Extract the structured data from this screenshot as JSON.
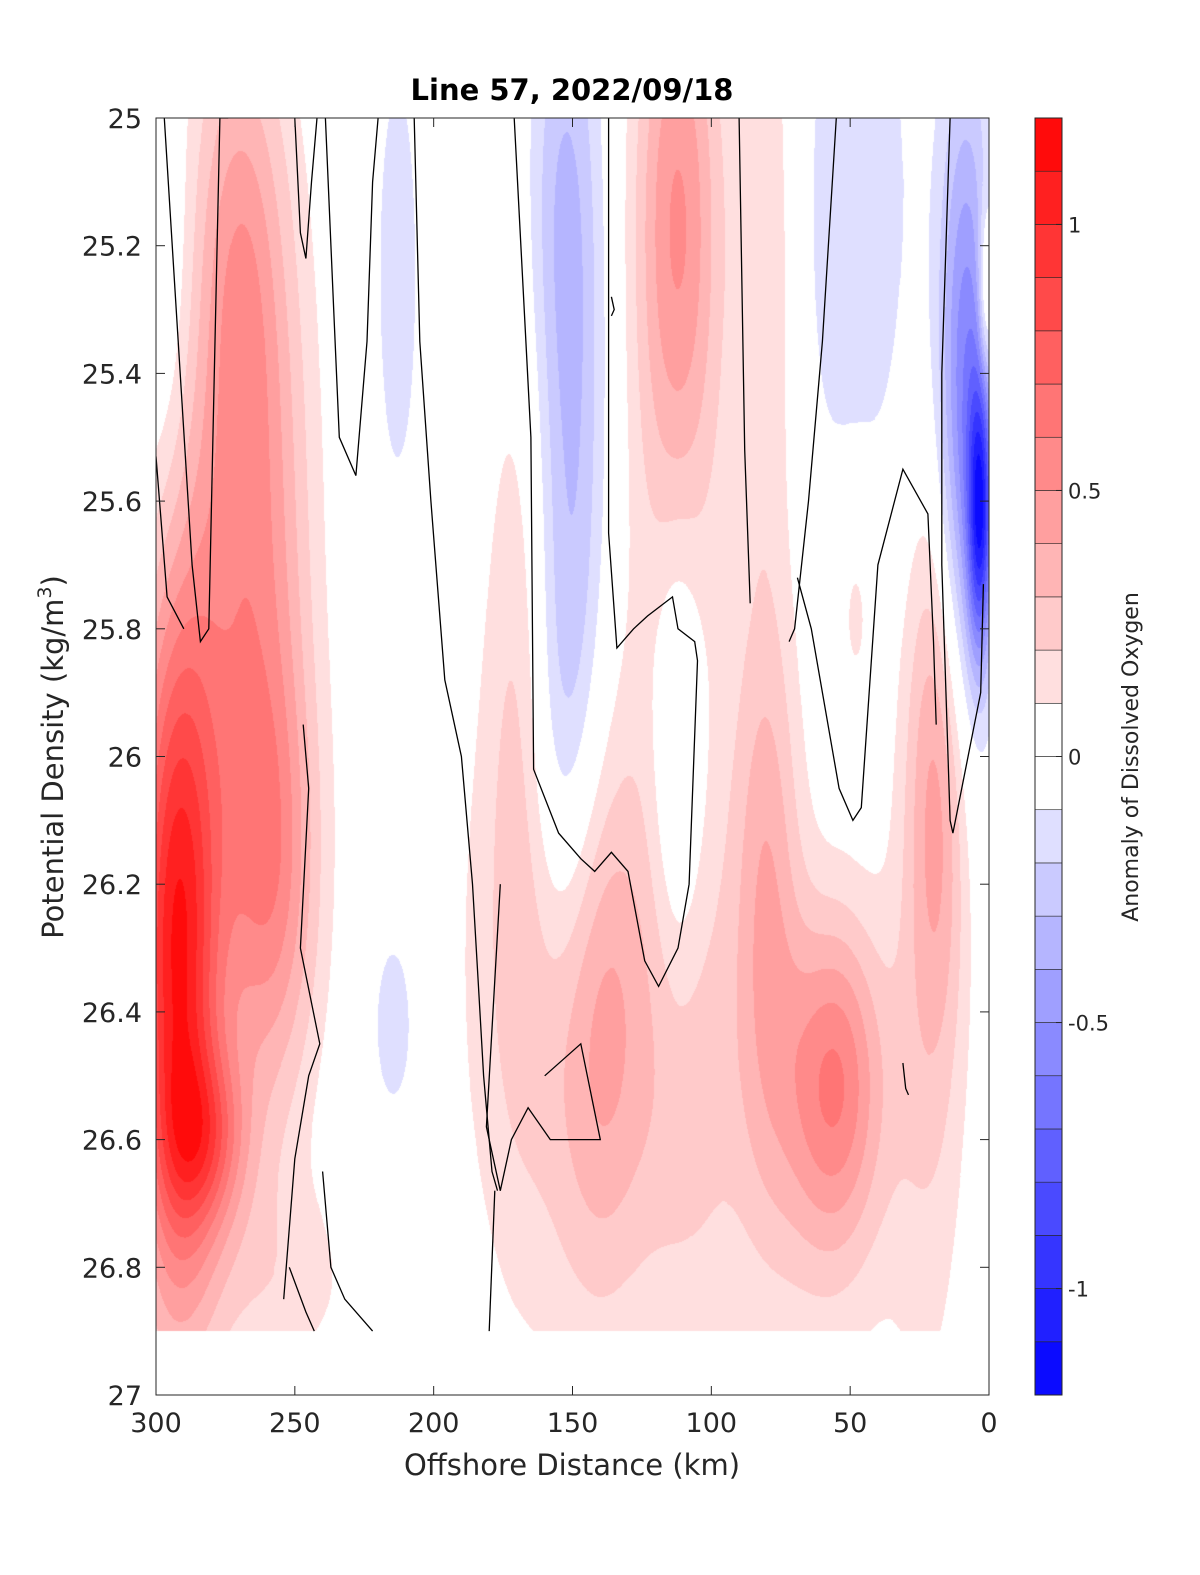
{
  "chart_data": {
    "type": "heatmap",
    "title": "Line 57, 2022/09/18",
    "xlabel": "Offshore Distance (km)",
    "ylabel": "Potential Density (kg/m",
    "ylabel_superscript": "3",
    "ylabel_suffix": ")",
    "colorbar_label": "Anomaly of Dissolved Oxygen",
    "xlim": [
      300,
      0
    ],
    "ylim": [
      25,
      27
    ],
    "y_reversed": true,
    "x_ticks": [
      300,
      250,
      200,
      150,
      100,
      50,
      0
    ],
    "x_tick_labels": [
      "300",
      "250",
      "200",
      "150",
      "100",
      "50",
      "0"
    ],
    "y_ticks": [
      25,
      25.2,
      25.4,
      25.6,
      25.8,
      26,
      26.2,
      26.4,
      26.6,
      26.8,
      27
    ],
    "y_tick_labels": [
      "25",
      "25.2",
      "25.4",
      "25.6",
      "25.8",
      "26",
      "26.2",
      "26.4",
      "26.6",
      "26.8",
      "27"
    ],
    "colorbar_range": [
      -1.2,
      1.2
    ],
    "colorbar_ticks": [
      1,
      0.5,
      0,
      -0.5,
      -1
    ],
    "colorbar_tick_labels": [
      "1",
      "0.5",
      "0",
      "-0.5",
      "-1"
    ],
    "colorbar_levels": 24,
    "colors": {
      "positive": "#ff0000",
      "negative": "#0000ff",
      "zero": "#ffffff",
      "contour": "#000000"
    },
    "data_extent": {
      "sigma_max": 26.9
    },
    "anomaly_features": [
      {
        "x": 293,
        "y": 26.32,
        "value": 1.0,
        "sx": 11,
        "sy": 0.38
      },
      {
        "x": 282,
        "y": 26.6,
        "value": 0.45,
        "sx": 11,
        "sy": 0.1
      },
      {
        "x": 262,
        "y": 25.65,
        "value": 0.4,
        "sx": 13,
        "sy": 0.45
      },
      {
        "x": 258,
        "y": 26.2,
        "value": 0.4,
        "sx": 12,
        "sy": 0.25
      },
      {
        "x": 270,
        "y": 25.2,
        "value": 0.2,
        "sx": 10,
        "sy": 0.25
      },
      {
        "x": 282,
        "y": 25.7,
        "value": 0.25,
        "sx": 14,
        "sy": 0.6
      },
      {
        "x": 296,
        "y": 25.3,
        "value": -0.15,
        "sx": 8,
        "sy": 0.28
      },
      {
        "x": 213,
        "y": 25.25,
        "value": -0.15,
        "sx": 7,
        "sy": 0.32
      },
      {
        "x": 214,
        "y": 26.42,
        "value": -0.15,
        "sx": 8,
        "sy": 0.15
      },
      {
        "x": 150,
        "y": 25.55,
        "value": -0.3,
        "sx": 9,
        "sy": 0.5
      },
      {
        "x": 155,
        "y": 25.1,
        "value": -0.15,
        "sx": 9,
        "sy": 0.25
      },
      {
        "x": 155,
        "y": 26.02,
        "value": -0.15,
        "sx": 9,
        "sy": 0.25
      },
      {
        "x": 112,
        "y": 26.0,
        "value": -0.3,
        "sx": 7,
        "sy": 0.28
      },
      {
        "x": 112,
        "y": 25.12,
        "value": 0.4,
        "sx": 11,
        "sy": 0.32
      },
      {
        "x": 112,
        "y": 25.65,
        "value": 0.2,
        "sx": 12,
        "sy": 0.5
      },
      {
        "x": 80,
        "y": 25.2,
        "value": 0.2,
        "sx": 8,
        "sy": 0.4
      },
      {
        "x": 80,
        "y": 26.2,
        "value": 0.35,
        "sx": 9,
        "sy": 0.32
      },
      {
        "x": 55,
        "y": 26.5,
        "value": 0.45,
        "sx": 12,
        "sy": 0.18
      },
      {
        "x": 62,
        "y": 26.62,
        "value": 0.2,
        "sx": 20,
        "sy": 0.25
      },
      {
        "x": 140,
        "y": 26.45,
        "value": 0.3,
        "sx": 13,
        "sy": 0.3
      },
      {
        "x": 158,
        "y": 26.35,
        "value": 0.2,
        "sx": 25,
        "sy": 0.4
      },
      {
        "x": 170,
        "y": 25.9,
        "value": 0.15,
        "sx": 8,
        "sy": 0.45
      },
      {
        "x": 108,
        "y": 26.52,
        "value": 0.2,
        "sx": 14,
        "sy": 0.32
      },
      {
        "x": 18,
        "y": 26.05,
        "value": 0.35,
        "sx": 8,
        "sy": 0.3
      },
      {
        "x": 22,
        "y": 26.42,
        "value": 0.15,
        "sx": 10,
        "sy": 0.5
      },
      {
        "x": 48,
        "y": 25.75,
        "value": 0.15,
        "sx": 6,
        "sy": 0.15
      },
      {
        "x": 48,
        "y": 25.15,
        "value": -0.2,
        "sx": 15,
        "sy": 0.35
      },
      {
        "x": 8,
        "y": 25.45,
        "value": -0.6,
        "sx": 7,
        "sy": 0.35
      },
      {
        "x": 3,
        "y": 25.62,
        "value": -0.8,
        "sx": 3,
        "sy": 0.15
      },
      {
        "x": 1,
        "y": 25.28,
        "value": 0.35,
        "sx": 2,
        "sy": 0.1
      },
      {
        "x": 258,
        "y": 26.82,
        "value": 0.15,
        "sx": 22,
        "sy": 0.12
      }
    ],
    "zero_contours": [
      [
        [
          297,
          25
        ],
        [
          287,
          25.7
        ],
        [
          284,
          25.82
        ],
        [
          281,
          25.8
        ],
        [
          279,
          25.4
        ],
        [
          277,
          25
        ],
        [
          274,
          25
        ]
      ],
      [
        [
          300,
          25.53
        ],
        [
          296,
          25.75
        ],
        [
          290,
          25.8
        ]
      ],
      [
        [
          250,
          25
        ],
        [
          248,
          25.18
        ],
        [
          246,
          25.22
        ],
        [
          244,
          25.1
        ],
        [
          242,
          25
        ]
      ],
      [
        [
          239,
          25
        ],
        [
          236,
          25.3
        ],
        [
          234,
          25.5
        ],
        [
          228,
          25.56
        ],
        [
          224,
          25.35
        ],
        [
          222,
          25.1
        ],
        [
          220,
          25
        ]
      ],
      [
        [
          207,
          25
        ],
        [
          205,
          25.35
        ],
        [
          201,
          25.6
        ],
        [
          196,
          25.88
        ],
        [
          190,
          26
        ],
        [
          186,
          26.2
        ],
        [
          184,
          26.35
        ],
        [
          182,
          26.5
        ],
        [
          179,
          26.65
        ],
        [
          177,
          26.68
        ]
      ],
      [
        [
          171,
          25
        ],
        [
          165,
          25.5
        ],
        [
          164,
          26.02
        ],
        [
          155,
          26.12
        ],
        [
          147,
          26.16
        ],
        [
          142,
          26.18
        ],
        [
          136,
          26.15
        ],
        [
          130,
          26.18
        ],
        [
          124,
          26.32
        ],
        [
          119,
          26.36
        ],
        [
          112,
          26.3
        ],
        [
          108,
          26.2
        ],
        [
          105,
          25.85
        ],
        [
          106,
          25.82
        ],
        [
          112,
          25.8
        ],
        [
          114,
          25.75
        ],
        [
          123,
          25.78
        ],
        [
          128,
          25.8
        ],
        [
          134,
          25.83
        ],
        [
          137,
          25.65
        ],
        [
          137,
          25
        ]
      ],
      [
        [
          136,
          25.28
        ],
        [
          135,
          25.3
        ],
        [
          136,
          25.31
        ]
      ],
      [
        [
          240,
          26.65
        ],
        [
          237,
          26.8
        ],
        [
          232,
          26.85
        ],
        [
          222,
          26.9
        ]
      ],
      [
        [
          180,
          26.9
        ],
        [
          178,
          26.68
        ]
      ],
      [
        [
          160,
          26.5
        ],
        [
          147,
          26.45
        ],
        [
          140,
          26.6
        ],
        [
          158,
          26.6
        ],
        [
          166,
          26.55
        ],
        [
          172,
          26.6
        ],
        [
          176,
          26.68
        ],
        [
          181,
          26.58
        ],
        [
          176,
          26.2
        ]
      ],
      [
        [
          247,
          25.95
        ],
        [
          245,
          26.05
        ],
        [
          248,
          26.3
        ],
        [
          241,
          26.45
        ],
        [
          245,
          26.5
        ],
        [
          250,
          26.63
        ],
        [
          254,
          26.85
        ]
      ],
      [
        [
          252,
          26.8
        ],
        [
          246,
          26.87
        ],
        [
          243,
          26.9
        ]
      ],
      [
        [
          69,
          25.72
        ],
        [
          64,
          25.8
        ],
        [
          54,
          26.05
        ],
        [
          49,
          26.1
        ],
        [
          46,
          26.08
        ],
        [
          40,
          25.7
        ],
        [
          31,
          25.55
        ],
        [
          22,
          25.62
        ],
        [
          20,
          25.82
        ],
        [
          19,
          25.95
        ]
      ],
      [
        [
          14,
          25
        ],
        [
          17,
          25.4
        ],
        [
          17,
          25.7
        ],
        [
          14,
          26.1
        ],
        [
          13,
          26.12
        ],
        [
          3,
          25.9
        ],
        [
          2,
          25.73
        ]
      ],
      [
        [
          55,
          25
        ],
        [
          60,
          25.35
        ],
        [
          65,
          25.6
        ],
        [
          70,
          25.8
        ],
        [
          72,
          25.82
        ]
      ],
      [
        [
          31,
          26.48
        ],
        [
          30,
          26.52
        ],
        [
          29,
          26.53
        ]
      ],
      [
        [
          90,
          25
        ],
        [
          88,
          25.52
        ],
        [
          86,
          25.76
        ]
      ]
    ]
  }
}
